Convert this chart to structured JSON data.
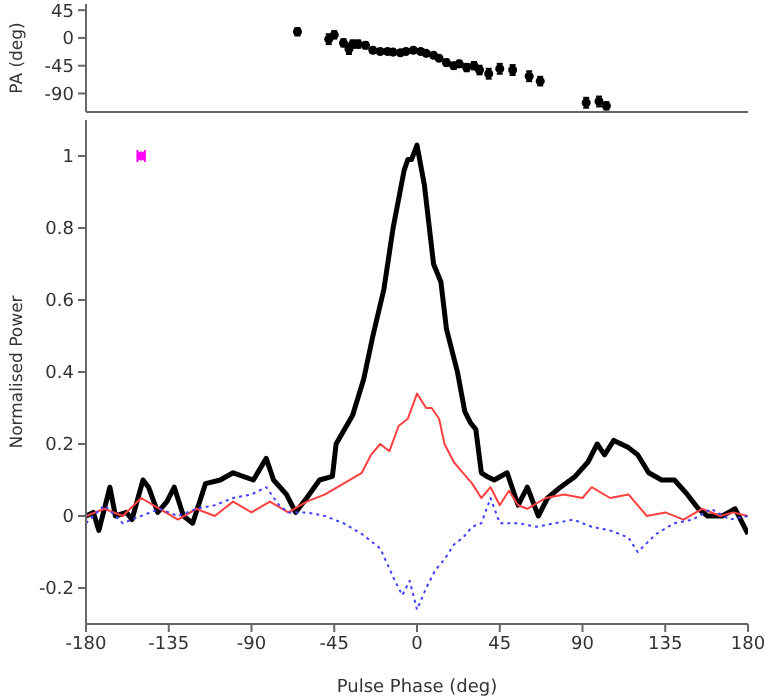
{
  "chart_data": [
    {
      "type": "scatter",
      "ylabel": "PA (deg)",
      "x": [
        -65,
        -48,
        -45,
        -40,
        -37,
        -35,
        -32,
        -28,
        -24,
        -20,
        -16,
        -13,
        -9,
        -6,
        -2,
        2,
        5,
        9,
        12,
        16,
        20,
        23,
        27,
        31,
        34,
        39,
        45,
        52,
        61,
        67,
        92,
        99,
        103
      ],
      "values": [
        10,
        -2,
        5,
        -8,
        -18,
        -10,
        -10,
        -12,
        -20,
        -22,
        -22,
        -23,
        -24,
        -22,
        -20,
        -22,
        -25,
        -28,
        -33,
        -40,
        -45,
        -42,
        -48,
        -45,
        -52,
        -58,
        -50,
        -52,
        -62,
        -70,
        -105,
        -103,
        -110
      ],
      "errors": [
        6,
        8,
        6,
        6,
        8,
        6,
        6,
        5,
        4,
        4,
        4,
        4,
        4,
        4,
        4,
        4,
        4,
        4,
        4,
        5,
        5,
        5,
        6,
        6,
        7,
        8,
        8,
        8,
        8,
        7,
        8,
        8,
        6
      ],
      "color": "#000000",
      "marker": "circle",
      "xlim": [
        -180,
        180
      ],
      "xticks": [
        -180,
        -135,
        -90,
        -45,
        0,
        45,
        90,
        135,
        180
      ],
      "ylim": [
        -120,
        55
      ],
      "yticks": [
        45,
        0,
        -45,
        -90
      ],
      "tick_labels": "y",
      "grid": false,
      "legend": false
    },
    {
      "type": "line",
      "xlabel": "Pulse Phase (deg)",
      "ylabel": "Normalised Power",
      "xlim": [
        -180,
        180
      ],
      "xticks": [
        -180,
        -135,
        -90,
        -45,
        0,
        45,
        90,
        135,
        180
      ],
      "ylim": [
        -0.3,
        1.1
      ],
      "yticks": [
        -0.2,
        0,
        0.2,
        0.4,
        0.6,
        0.8,
        1
      ],
      "grid": false,
      "legend": false,
      "marker": "none",
      "series": [
        {
          "color": "#000000",
          "line_style": "solid",
          "x": [
            -180,
            -176,
            -173,
            -167,
            -164,
            -158,
            -155,
            -149,
            -146,
            -141,
            -136,
            -132,
            -127,
            -122,
            -115,
            -107,
            -100,
            -89,
            -82,
            -78,
            -71,
            -66,
            -60,
            -53,
            -46,
            -44,
            -35,
            -29,
            -24,
            -18,
            -13,
            -7,
            -5,
            -3,
            0,
            4,
            9,
            13,
            16,
            22,
            26,
            29,
            32,
            35,
            38,
            42,
            49,
            55,
            60,
            66,
            71,
            78,
            86,
            93,
            98,
            102,
            107,
            115,
            120,
            126,
            133,
            140,
            147,
            153,
            158,
            166,
            173,
            180
          ],
          "values": [
            0,
            0.01,
            -0.04,
            0.08,
            0,
            0.01,
            -0.01,
            0.1,
            0.08,
            0.01,
            0.04,
            0.08,
            0,
            -0.02,
            0.09,
            0.1,
            0.12,
            0.1,
            0.16,
            0.1,
            0.06,
            0.01,
            0.05,
            0.1,
            0.11,
            0.2,
            0.28,
            0.38,
            0.5,
            0.63,
            0.8,
            0.96,
            0.99,
            0.99,
            1.03,
            0.92,
            0.7,
            0.65,
            0.52,
            0.4,
            0.29,
            0.26,
            0.24,
            0.12,
            0.11,
            0.1,
            0.12,
            0.03,
            0.08,
            0,
            0.05,
            0.08,
            0.11,
            0.15,
            0.2,
            0.17,
            0.21,
            0.19,
            0.17,
            0.12,
            0.1,
            0.1,
            0.06,
            0.02,
            0,
            0,
            0.02,
            -0.05
          ]
        },
        {
          "color": "#ff4040",
          "line_style": "solid",
          "x": [
            -180,
            -170,
            -160,
            -150,
            -140,
            -130,
            -120,
            -110,
            -100,
            -90,
            -80,
            -70,
            -60,
            -50,
            -40,
            -30,
            -25,
            -20,
            -15,
            -10,
            -5,
            0,
            5,
            8,
            12,
            15,
            20,
            25,
            30,
            35,
            40,
            45,
            50,
            55,
            60,
            70,
            80,
            90,
            95,
            105,
            115,
            125,
            135,
            145,
            155,
            165,
            172,
            180
          ],
          "values": [
            0,
            0.02,
            0,
            0.05,
            0.02,
            -0.01,
            0.02,
            0,
            0.04,
            0.01,
            0.04,
            0.01,
            0.04,
            0.06,
            0.09,
            0.12,
            0.17,
            0.2,
            0.18,
            0.25,
            0.27,
            0.34,
            0.3,
            0.3,
            0.27,
            0.2,
            0.15,
            0.12,
            0.09,
            0.05,
            0.08,
            0.03,
            0.07,
            0.03,
            0.02,
            0.05,
            0.06,
            0.05,
            0.08,
            0.05,
            0.06,
            0,
            0.01,
            -0.01,
            0.02,
            0,
            0.01,
            0
          ]
        },
        {
          "color": "#4040ff",
          "line_style": "dotted",
          "x": [
            -180,
            -170,
            -160,
            -150,
            -140,
            -130,
            -120,
            -110,
            -100,
            -90,
            -82,
            -75,
            -70,
            -60,
            -50,
            -40,
            -30,
            -20,
            -12,
            -8,
            -4,
            0,
            5,
            10,
            15,
            20,
            25,
            30,
            35,
            40,
            45,
            55,
            65,
            75,
            85,
            95,
            105,
            115,
            120,
            130,
            140,
            150,
            160,
            170,
            180
          ],
          "values": [
            -0.02,
            0.03,
            -0.02,
            0,
            0.02,
            0,
            0.02,
            0.03,
            0.05,
            0.06,
            0.08,
            0.03,
            0.01,
            0.01,
            0,
            -0.02,
            -0.05,
            -0.09,
            -0.18,
            -0.22,
            -0.18,
            -0.26,
            -0.2,
            -0.15,
            -0.12,
            -0.08,
            -0.06,
            -0.03,
            -0.02,
            0.05,
            -0.02,
            -0.02,
            -0.03,
            -0.02,
            -0.01,
            -0.03,
            -0.04,
            -0.06,
            -0.1,
            -0.05,
            -0.02,
            -0.01,
            0.02,
            -0.01,
            0
          ]
        },
        {
          "type": "scatter",
          "color": "#ff00ff",
          "marker": "circle",
          "x": [
            -150
          ],
          "values": [
            1
          ],
          "xerrors": [
            2
          ]
        }
      ]
    }
  ]
}
